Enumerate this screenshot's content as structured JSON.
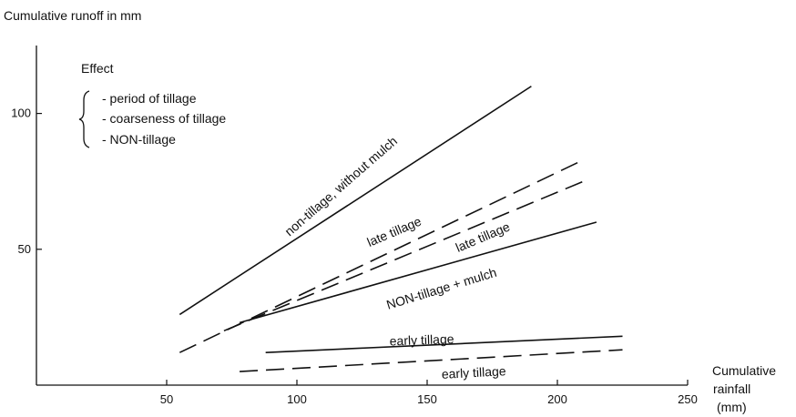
{
  "chart_data": {
    "type": "line",
    "ylabel": "Cumulative runoff in mm",
    "xlabel": [
      "Cumulative",
      "rainfall",
      "(mm)"
    ],
    "xlim": [
      0,
      250
    ],
    "ylim": [
      0,
      125
    ],
    "x_ticks": [
      50,
      100,
      150,
      200,
      250
    ],
    "y_ticks": [
      50,
      100
    ],
    "grid": false,
    "legend": {
      "title": "Effect",
      "items": [
        "- period of tillage",
        "- coarseness of tillage",
        "- NON-tillage"
      ]
    },
    "series": [
      {
        "name": "non-tillage, without mulch",
        "style": "solid",
        "x": [
          55,
          190
        ],
        "y": [
          26,
          110
        ]
      },
      {
        "name": "late tillage",
        "style": "dashed",
        "x": [
          55,
          208
        ],
        "y": [
          12,
          82
        ]
      },
      {
        "name": "late tillage",
        "style": "dashed",
        "x": [
          72,
          210
        ],
        "y": [
          20,
          75
        ]
      },
      {
        "name": "NON-tillage + mulch",
        "style": "solid",
        "x": [
          78,
          215
        ],
        "y": [
          23,
          60
        ]
      },
      {
        "name": "early tillage",
        "style": "solid",
        "x": [
          88,
          225
        ],
        "y": [
          12,
          18
        ]
      },
      {
        "name": "early tillage",
        "style": "dashed",
        "x": [
          78,
          225
        ],
        "y": [
          5,
          13
        ]
      }
    ],
    "annotations": [
      {
        "text": "non-tillage, without mulch",
        "x": 118,
        "y": 72,
        "angle": -41
      },
      {
        "text": "late tillage",
        "x": 138,
        "y": 55,
        "angle": -23
      },
      {
        "text": "late tillage",
        "x": 172,
        "y": 53,
        "angle": -23
      },
      {
        "text": "NON-tillage + mulch",
        "x": 156,
        "y": 34,
        "angle": -17
      },
      {
        "text": "early tillage",
        "x": 148,
        "y": 15,
        "angle": -2
      },
      {
        "text": "early tillage",
        "x": 168,
        "y": 3,
        "angle": -3
      }
    ]
  }
}
